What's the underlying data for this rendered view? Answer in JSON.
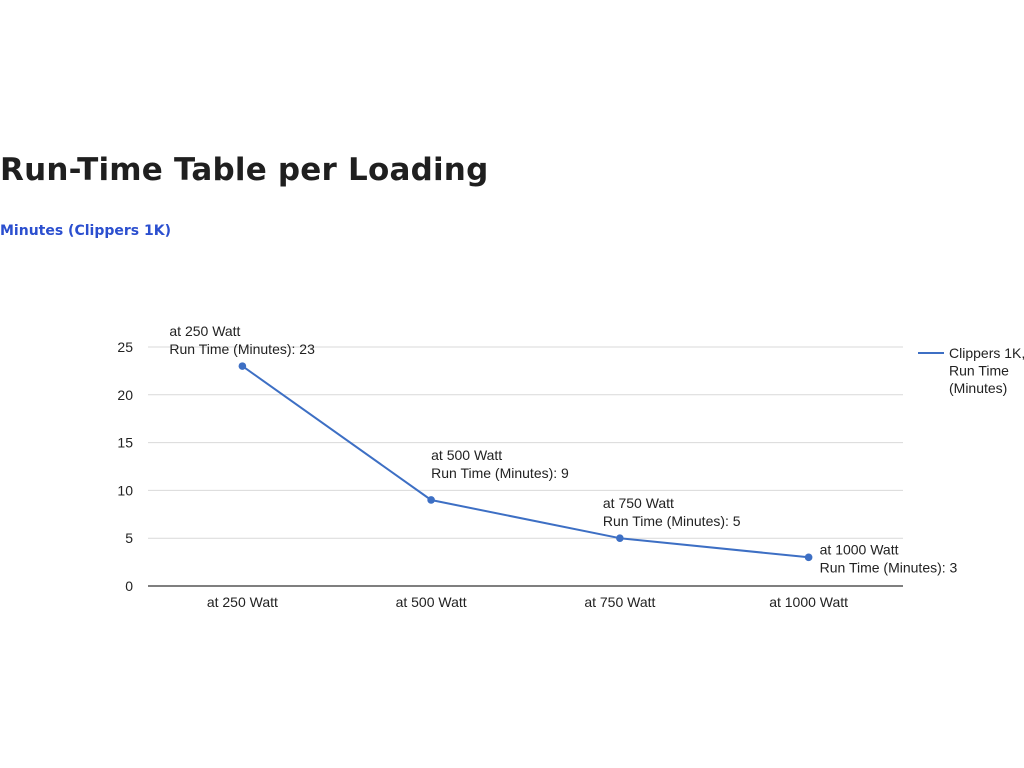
{
  "page": {
    "title": "Run-Time Table per Loading",
    "subtitle": "Minutes (Clippers 1K)"
  },
  "colors": {
    "series": "#3d6fc4",
    "grid": "#d9d9d9",
    "axis": "#333333",
    "subtitle": "#2b4fcf"
  },
  "chart_data": {
    "type": "line",
    "title": "",
    "xlabel": "",
    "ylabel": "",
    "categories": [
      "at 250 Watt",
      "at 500 Watt",
      "at 750 Watt",
      "at 1000 Watt"
    ],
    "series": [
      {
        "name": "Clippers 1K, Run Time (Minutes)",
        "values": [
          23,
          9,
          5,
          3
        ]
      }
    ],
    "ylim": [
      0,
      25
    ],
    "yticks": [
      0,
      5,
      10,
      15,
      20,
      25
    ],
    "grid": true,
    "legend_position": "right",
    "legend_lines": [
      "Clippers 1K,",
      "Run Time",
      "(Minutes)"
    ],
    "data_labels": [
      {
        "line1": "at 250 Watt",
        "line2": "Run Time (Minutes): 23"
      },
      {
        "line1": "at 500 Watt",
        "line2": "Run Time (Minutes): 9"
      },
      {
        "line1": "at 750 Watt",
        "line2": "Run Time (Minutes): 5"
      },
      {
        "line1": "at 1000 Watt",
        "line2": "Run Time (Minutes): 3"
      }
    ]
  }
}
